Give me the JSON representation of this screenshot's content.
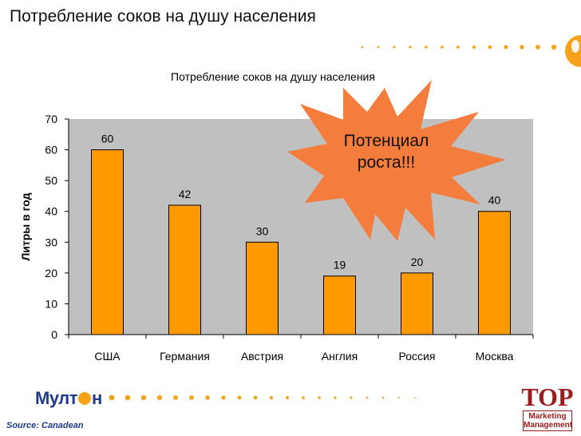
{
  "slide": {
    "title": "Потребление соков на душу населения",
    "source": "Source: Canadean"
  },
  "logos": {
    "multon": "Мулт●н",
    "top_word": "TOP",
    "top_sub_1": "Marketing",
    "top_sub_2": "Management"
  },
  "burst": {
    "line1": "Потенциал",
    "line2": "роста!!!",
    "color": "#f47c3c"
  },
  "chart_data": {
    "type": "bar",
    "title": "Потребление соков на душу населения",
    "xlabel": "",
    "ylabel": "Литры в год",
    "categories": [
      "США",
      "Германия",
      "Австрия",
      "Англия",
      "Россия",
      "Москва"
    ],
    "values": [
      60,
      42,
      30,
      19,
      20,
      40
    ],
    "data_labels": [
      "60",
      "42",
      "30",
      "19",
      "20",
      "40"
    ],
    "ylim": [
      0,
      70
    ],
    "yticks": [
      0,
      10,
      20,
      30,
      40,
      50,
      60,
      70
    ],
    "ytick_labels": [
      "0",
      "10",
      "20",
      "30",
      "40",
      "50",
      "60",
      "70"
    ],
    "grid": false,
    "bar_color": "#ff9900",
    "plot_bg": "#c0c0c0"
  }
}
